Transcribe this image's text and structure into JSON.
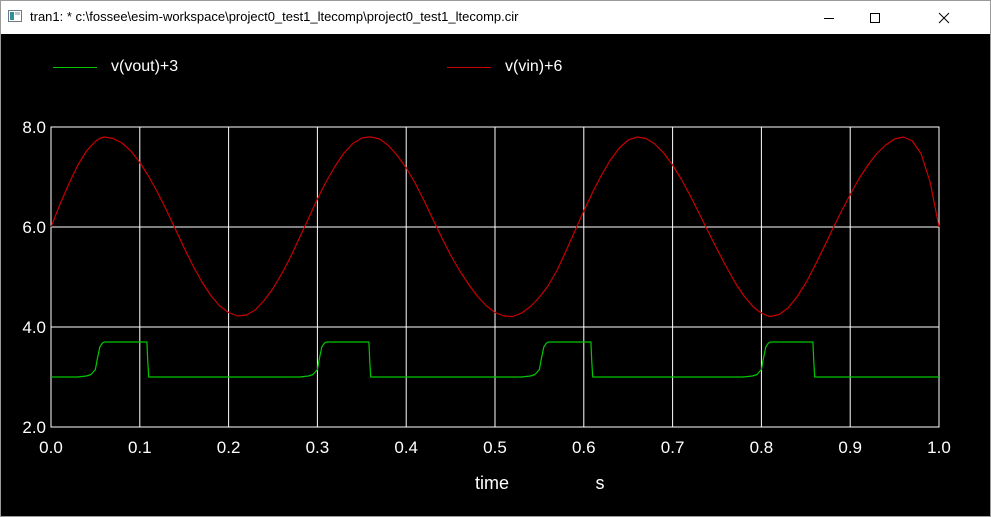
{
  "window": {
    "title": "tran1: * c:\\fossee\\esim-workspace\\project0_test1_ltecomp\\project0_test1_ltecomp.cir",
    "app_icon": "ngspice-plot-window-icon",
    "controls": {
      "minimize_icon": "minimize-icon",
      "maximize_icon": "maximize-icon",
      "close_icon": "close-icon"
    }
  },
  "colors": {
    "background": "#000000",
    "grid": "#ffffff",
    "text": "#ffffff",
    "vout": "#00c800",
    "vin": "#c80000"
  },
  "chart_data": {
    "type": "line",
    "x": [
      0.0,
      0.01,
      0.02,
      0.03,
      0.04,
      0.045,
      0.05,
      0.052,
      0.055,
      0.058,
      0.06,
      0.07,
      0.08,
      0.09,
      0.1,
      0.108,
      0.109,
      0.11,
      0.12,
      0.13,
      0.14,
      0.15,
      0.16,
      0.17,
      0.18,
      0.19,
      0.2,
      0.21,
      0.22,
      0.23,
      0.24,
      0.25,
      0.26,
      0.27,
      0.28,
      0.29,
      0.295,
      0.3,
      0.302,
      0.305,
      0.308,
      0.31,
      0.32,
      0.33,
      0.34,
      0.35,
      0.358,
      0.359,
      0.36,
      0.37,
      0.38,
      0.39,
      0.4,
      0.41,
      0.42,
      0.43,
      0.44,
      0.45,
      0.46,
      0.47,
      0.48,
      0.49,
      0.5,
      0.51,
      0.52,
      0.53,
      0.54,
      0.545,
      0.55,
      0.552,
      0.555,
      0.558,
      0.56,
      0.57,
      0.58,
      0.59,
      0.6,
      0.608,
      0.609,
      0.61,
      0.62,
      0.63,
      0.64,
      0.65,
      0.66,
      0.67,
      0.68,
      0.69,
      0.7,
      0.71,
      0.72,
      0.73,
      0.74,
      0.75,
      0.76,
      0.77,
      0.78,
      0.79,
      0.795,
      0.8,
      0.802,
      0.805,
      0.808,
      0.81,
      0.82,
      0.83,
      0.84,
      0.85,
      0.858,
      0.859,
      0.86,
      0.87,
      0.88,
      0.89,
      0.9,
      0.91,
      0.92,
      0.93,
      0.94,
      0.95,
      0.96,
      0.97,
      0.98,
      0.99,
      1.0
    ],
    "series": [
      {
        "name": "v(vout)+3",
        "color": "#00c800",
        "values": [
          3.0,
          3.0,
          3.0,
          3.0,
          3.02,
          3.05,
          3.15,
          3.35,
          3.6,
          3.68,
          3.7,
          3.7,
          3.7,
          3.7,
          3.7,
          3.7,
          3.3,
          3.0,
          3.0,
          3.0,
          3.0,
          3.0,
          3.0,
          3.0,
          3.0,
          3.0,
          3.0,
          3.0,
          3.0,
          3.0,
          3.0,
          3.0,
          3.0,
          3.0,
          3.0,
          3.02,
          3.05,
          3.15,
          3.35,
          3.6,
          3.68,
          3.7,
          3.7,
          3.7,
          3.7,
          3.7,
          3.7,
          3.3,
          3.0,
          3.0,
          3.0,
          3.0,
          3.0,
          3.0,
          3.0,
          3.0,
          3.0,
          3.0,
          3.0,
          3.0,
          3.0,
          3.0,
          3.0,
          3.0,
          3.0,
          3.0,
          3.02,
          3.05,
          3.15,
          3.35,
          3.6,
          3.68,
          3.7,
          3.7,
          3.7,
          3.7,
          3.7,
          3.7,
          3.3,
          3.0,
          3.0,
          3.0,
          3.0,
          3.0,
          3.0,
          3.0,
          3.0,
          3.0,
          3.0,
          3.0,
          3.0,
          3.0,
          3.0,
          3.0,
          3.0,
          3.0,
          3.0,
          3.02,
          3.05,
          3.15,
          3.35,
          3.6,
          3.68,
          3.7,
          3.7,
          3.7,
          3.7,
          3.7,
          3.7,
          3.3,
          3.0,
          3.0,
          3.0,
          3.0,
          3.0,
          3.0,
          3.0,
          3.0,
          3.0,
          3.0,
          3.0,
          3.0,
          3.0,
          3.0,
          3.0
        ]
      },
      {
        "name": "v(vin)+6",
        "color": "#c80000",
        "values": [
          6.0,
          6.45,
          6.86,
          7.23,
          7.52,
          7.62,
          7.71,
          7.74,
          7.77,
          7.79,
          7.8,
          7.77,
          7.68,
          7.52,
          7.29,
          7.07,
          7.04,
          7.01,
          6.69,
          6.34,
          5.96,
          5.58,
          5.22,
          4.9,
          4.63,
          4.42,
          4.29,
          4.22,
          4.24,
          4.34,
          4.53,
          4.77,
          5.07,
          5.41,
          5.79,
          6.17,
          6.37,
          6.56,
          6.63,
          6.74,
          6.84,
          6.91,
          7.22,
          7.48,
          7.67,
          7.78,
          7.8,
          7.8,
          7.8,
          7.76,
          7.63,
          7.43,
          7.18,
          6.88,
          6.53,
          6.16,
          5.79,
          5.44,
          5.13,
          4.86,
          4.62,
          4.43,
          4.29,
          4.22,
          4.21,
          4.28,
          4.41,
          4.5,
          4.6,
          4.64,
          4.71,
          4.78,
          4.83,
          5.14,
          5.52,
          5.92,
          6.32,
          6.62,
          6.66,
          6.7,
          7.04,
          7.34,
          7.58,
          7.74,
          7.8,
          7.77,
          7.66,
          7.48,
          7.24,
          6.95,
          6.62,
          6.27,
          5.91,
          5.56,
          5.22,
          4.9,
          4.63,
          4.42,
          4.34,
          4.28,
          4.26,
          4.24,
          4.22,
          4.21,
          4.25,
          4.38,
          4.6,
          4.88,
          5.15,
          5.18,
          5.22,
          5.58,
          5.95,
          6.31,
          6.65,
          6.97,
          7.24,
          7.47,
          7.64,
          7.76,
          7.8,
          7.72,
          7.46,
          6.9,
          6.0
        ]
      }
    ],
    "xlabel": "time",
    "xunit": "s",
    "ylabel": "",
    "xlim": [
      0.0,
      1.0
    ],
    "ylim": [
      2.0,
      8.0
    ],
    "xticks": [
      "0.0",
      "0.1",
      "0.2",
      "0.3",
      "0.4",
      "0.5",
      "0.6",
      "0.7",
      "0.8",
      "0.9",
      "1.0"
    ],
    "yticks": [
      "2.0",
      "4.0",
      "6.0",
      "8.0"
    ],
    "grid": true,
    "legend_position": "top"
  }
}
